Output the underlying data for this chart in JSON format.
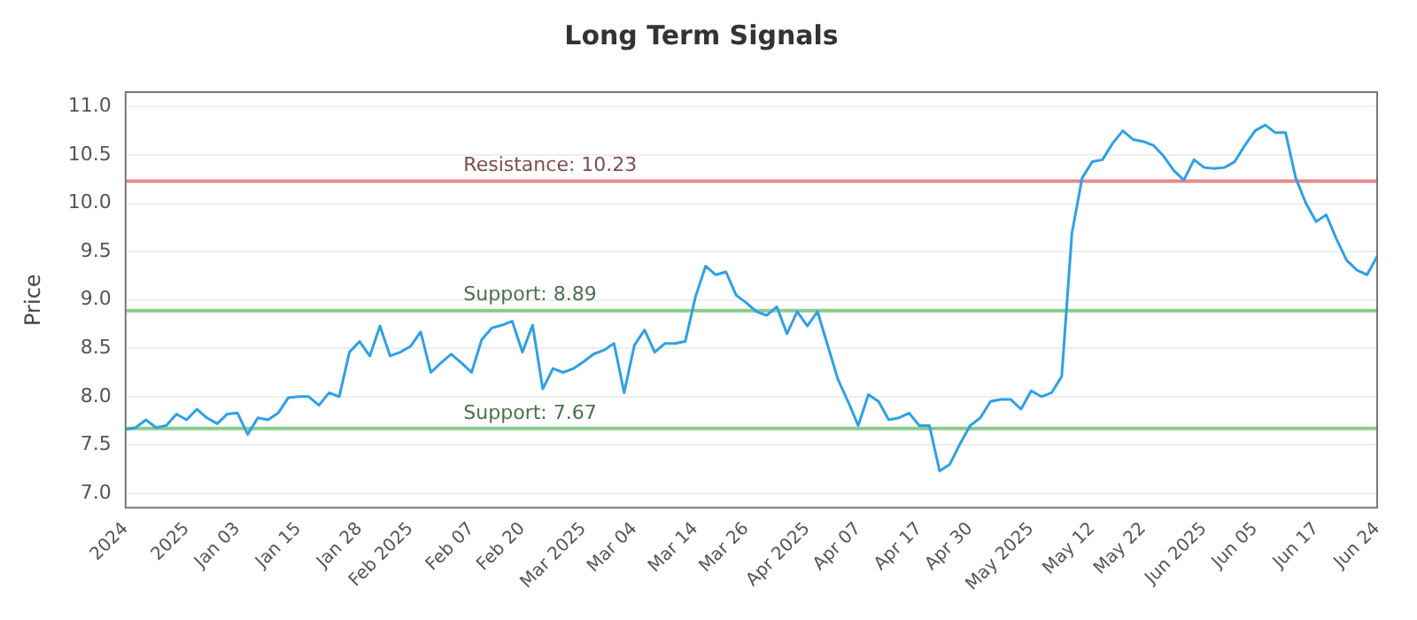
{
  "chart_data": {
    "type": "line",
    "title": "Long Term Signals",
    "ylabel": "Price",
    "categories": [
      "2024",
      null,
      null,
      null,
      null,
      null,
      "2025",
      null,
      null,
      null,
      null,
      "Jan 03",
      null,
      null,
      null,
      null,
      null,
      "Jan 15",
      null,
      null,
      null,
      null,
      null,
      "Jan 28",
      null,
      null,
      null,
      null,
      "Feb 2025",
      null,
      null,
      null,
      null,
      null,
      "Feb 07",
      null,
      null,
      null,
      null,
      "Feb 20",
      null,
      null,
      null,
      null,
      null,
      "Mar 2025",
      null,
      null,
      null,
      null,
      "Mar 04",
      null,
      null,
      null,
      null,
      null,
      "Mar 14",
      null,
      null,
      null,
      null,
      "Mar 26",
      null,
      null,
      null,
      null,
      null,
      "Apr 2025",
      null,
      null,
      null,
      null,
      "Apr 07",
      null,
      null,
      null,
      null,
      null,
      "Apr 17",
      null,
      null,
      null,
      null,
      "Apr 30",
      null,
      null,
      null,
      null,
      null,
      "May 2025",
      null,
      null,
      null,
      null,
      null,
      "May 12",
      null,
      null,
      null,
      null,
      "May 22",
      null,
      null,
      null,
      null,
      null,
      "Jun 2025",
      null,
      null,
      null,
      null,
      "Jun 05",
      null,
      null,
      null,
      null,
      null,
      "Jun 17",
      null,
      null,
      null,
      null,
      null,
      "Jun 24"
    ],
    "series": [
      {
        "color": "#2fa0e6",
        "values": [
          7.66,
          7.68,
          7.76,
          7.68,
          7.7,
          7.82,
          7.76,
          7.87,
          7.78,
          7.72,
          7.82,
          7.83,
          7.61,
          7.78,
          7.76,
          7.83,
          7.99,
          8.0,
          8.0,
          7.91,
          8.04,
          8.0,
          8.46,
          8.57,
          8.42,
          8.73,
          8.42,
          8.46,
          8.52,
          8.67,
          8.25,
          8.35,
          8.44,
          8.35,
          8.25,
          8.59,
          8.71,
          8.74,
          8.78,
          8.46,
          8.74,
          8.08,
          8.29,
          8.25,
          8.29,
          8.36,
          8.44,
          8.48,
          8.55,
          8.04,
          8.53,
          8.69,
          8.46,
          8.55,
          8.55,
          8.57,
          9.03,
          9.35,
          9.26,
          9.29,
          9.05,
          8.97,
          8.88,
          8.84,
          8.93,
          8.65,
          8.88,
          8.73,
          8.88,
          8.53,
          8.18,
          7.95,
          7.7,
          8.02,
          7.95,
          7.76,
          7.78,
          7.83,
          7.7,
          7.7,
          7.23,
          7.3,
          7.51,
          7.7,
          7.78,
          7.95,
          7.97,
          7.97,
          7.87,
          8.06,
          8.0,
          8.04,
          8.21,
          9.69,
          10.26,
          10.43,
          10.45,
          10.62,
          10.75,
          10.66,
          10.64,
          10.6,
          10.49,
          10.34,
          10.24,
          10.45,
          10.37,
          10.36,
          10.37,
          10.43,
          10.6,
          10.75,
          10.81,
          10.73,
          10.73,
          10.26,
          10.0,
          9.81,
          9.88,
          9.63,
          9.41,
          9.31,
          9.26,
          9.45
        ]
      }
    ],
    "ylim": [
      6.85,
      11.15
    ],
    "yticks": [
      {
        "value": 7,
        "label": "7.0"
      },
      7.5,
      {
        "value": 8,
        "label": "8.0"
      },
      8.5,
      {
        "value": 9,
        "label": "9.0"
      },
      9.5,
      {
        "value": 10,
        "label": "10.0"
      },
      10.5,
      {
        "value": 11,
        "label": "11.0"
      }
    ],
    "grid": "y",
    "legend": false,
    "marker": "none",
    "line_style": "solid",
    "ref_lines": [
      {
        "axis": "y",
        "value": 10.23,
        "label": "Resistance: 10.23",
        "color": "#e88a8a"
      },
      {
        "axis": "y",
        "value": 8.89,
        "label": "Support: 8.89",
        "color": "#8acb8a"
      },
      {
        "axis": "y",
        "value": 7.67,
        "label": "Support: 7.67",
        "color": "#8acb8a"
      }
    ]
  }
}
